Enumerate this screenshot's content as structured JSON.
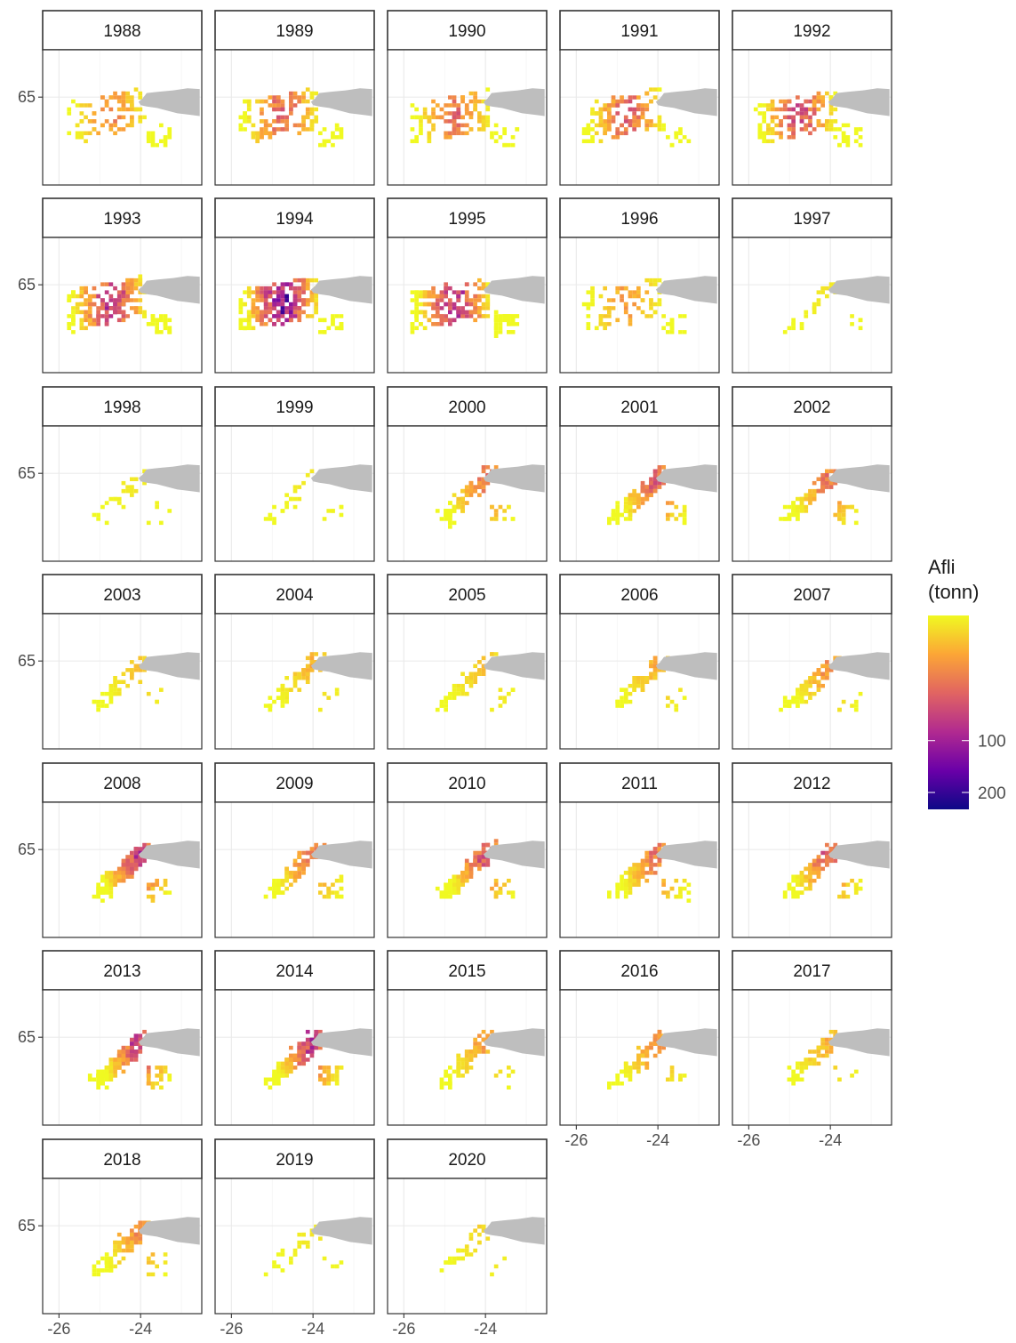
{
  "chart_data": {
    "type": "heatmap",
    "title": "",
    "subtitle": "",
    "facet_by": "year",
    "panels": [
      "1988",
      "1989",
      "1990",
      "1991",
      "1992",
      "1993",
      "1994",
      "1995",
      "1996",
      "1997",
      "1998",
      "1999",
      "2000",
      "2001",
      "2002",
      "2003",
      "2004",
      "2005",
      "2006",
      "2007",
      "2008",
      "2009",
      "2010",
      "2011",
      "2012",
      "2013",
      "2014",
      "2015",
      "2016",
      "2017",
      "2018",
      "2019",
      "2020"
    ],
    "panel_intensity": {
      "1988": 0.35,
      "1989": 0.5,
      "1990": 0.45,
      "1991": 0.5,
      "1992": 0.6,
      "1993": 0.7,
      "1994": 0.9,
      "1995": 0.75,
      "1996": 0.3,
      "1997": 0.05,
      "1998": 0.05,
      "1999": 0.05,
      "2000": 0.4,
      "2001": 0.5,
      "2002": 0.4,
      "2003": 0.15,
      "2004": 0.2,
      "2005": 0.15,
      "2006": 0.2,
      "2007": 0.3,
      "2008": 0.6,
      "2009": 0.4,
      "2010": 0.5,
      "2011": 0.4,
      "2012": 0.5,
      "2013": 0.6,
      "2014": 0.6,
      "2015": 0.25,
      "2016": 0.3,
      "2017": 0.2,
      "2018": 0.3,
      "2019": 0.05,
      "2020": 0.1
    },
    "x_axis": {
      "label": "",
      "ticks": [
        "-26",
        "-24"
      ],
      "range": [
        -26.4,
        -22.5
      ]
    },
    "y_axis": {
      "label": "",
      "ticks": [
        "65"
      ],
      "range": [
        63.7,
        65.7
      ]
    },
    "grid": true,
    "land_color": "#bebebe",
    "legend": {
      "title_line1": "Afli",
      "title_line2": "(tonn)",
      "labels": [
        "100",
        "200"
      ],
      "tick_values": [
        100,
        200
      ],
      "range": [
        0,
        240
      ],
      "scale": "sqrt",
      "palette": "plasma",
      "placement": "right",
      "colors": [
        "#0d0887",
        "#6a00a8",
        "#b12a90",
        "#e16462",
        "#fca636",
        "#f0f921"
      ]
    }
  }
}
